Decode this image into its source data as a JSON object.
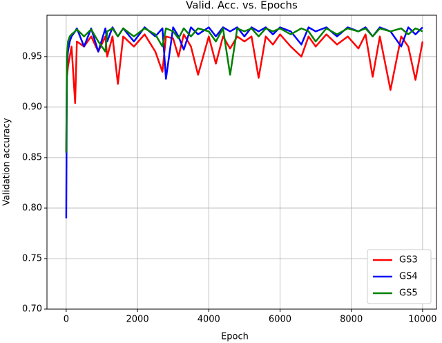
{
  "chart_data": {
    "type": "line",
    "title": "Valid. Acc. vs. Epochs",
    "x_label": "Epoch",
    "y_label": "Validation accuracy",
    "x": [
      0,
      20,
      50,
      100,
      150,
      250,
      300,
      500,
      700,
      900,
      1100,
      1150,
      1300,
      1450,
      1600,
      1900,
      2200,
      2500,
      2700,
      2800,
      3000,
      3150,
      3300,
      3500,
      3700,
      4000,
      4200,
      4400,
      4600,
      4800,
      5000,
      5200,
      5400,
      5600,
      5800,
      6000,
      6300,
      6600,
      6800,
      7000,
      7300,
      7600,
      7900,
      8200,
      8400,
      8600,
      8800,
      9100,
      9400,
      9600,
      9800,
      10000
    ],
    "series": [
      {
        "name": "GS3",
        "color": "#ff0000",
        "values": [
          0.855,
          0.93,
          0.94,
          0.95,
          0.96,
          0.904,
          0.965,
          0.96,
          0.97,
          0.955,
          0.97,
          0.95,
          0.97,
          0.923,
          0.97,
          0.96,
          0.972,
          0.955,
          0.935,
          0.97,
          0.968,
          0.95,
          0.972,
          0.96,
          0.932,
          0.97,
          0.943,
          0.97,
          0.958,
          0.97,
          0.965,
          0.97,
          0.929,
          0.97,
          0.962,
          0.972,
          0.96,
          0.95,
          0.97,
          0.96,
          0.972,
          0.962,
          0.97,
          0.958,
          0.972,
          0.93,
          0.97,
          0.917,
          0.97,
          0.96,
          0.927,
          0.965
        ]
      },
      {
        "name": "GS4",
        "color": "#0000ff",
        "values": [
          0.79,
          0.94,
          0.955,
          0.965,
          0.97,
          0.975,
          0.978,
          0.96,
          0.978,
          0.955,
          0.978,
          0.965,
          0.979,
          0.97,
          0.978,
          0.965,
          0.979,
          0.97,
          0.978,
          0.928,
          0.979,
          0.97,
          0.957,
          0.979,
          0.972,
          0.979,
          0.97,
          0.979,
          0.975,
          0.979,
          0.97,
          0.979,
          0.975,
          0.979,
          0.972,
          0.979,
          0.975,
          0.962,
          0.979,
          0.975,
          0.979,
          0.97,
          0.979,
          0.975,
          0.979,
          0.97,
          0.979,
          0.975,
          0.96,
          0.979,
          0.972,
          0.979
        ]
      },
      {
        "name": "GS5",
        "color": "#008000",
        "values": [
          0.855,
          0.95,
          0.965,
          0.97,
          0.972,
          0.975,
          0.977,
          0.97,
          0.977,
          0.965,
          0.955,
          0.975,
          0.978,
          0.97,
          0.978,
          0.97,
          0.978,
          0.972,
          0.96,
          0.978,
          0.975,
          0.968,
          0.978,
          0.97,
          0.978,
          0.975,
          0.965,
          0.978,
          0.932,
          0.978,
          0.975,
          0.978,
          0.97,
          0.978,
          0.975,
          0.978,
          0.972,
          0.978,
          0.975,
          0.965,
          0.978,
          0.972,
          0.978,
          0.975,
          0.978,
          0.97,
          0.978,
          0.975,
          0.978,
          0.972,
          0.978,
          0.975
        ]
      }
    ],
    "xlim": [
      -540,
      10390
    ],
    "ylim": [
      0.7,
      0.991
    ],
    "xticks": [
      0,
      2000,
      4000,
      6000,
      8000,
      10000
    ],
    "yticks": [
      {
        "value": 0.7,
        "label": "0.70"
      },
      0.75,
      {
        "value": 0.8,
        "label": "0.80"
      },
      0.85,
      {
        "value": 0.9,
        "label": "0.90"
      },
      0.95
    ],
    "grid": true,
    "legend": "lower right"
  }
}
